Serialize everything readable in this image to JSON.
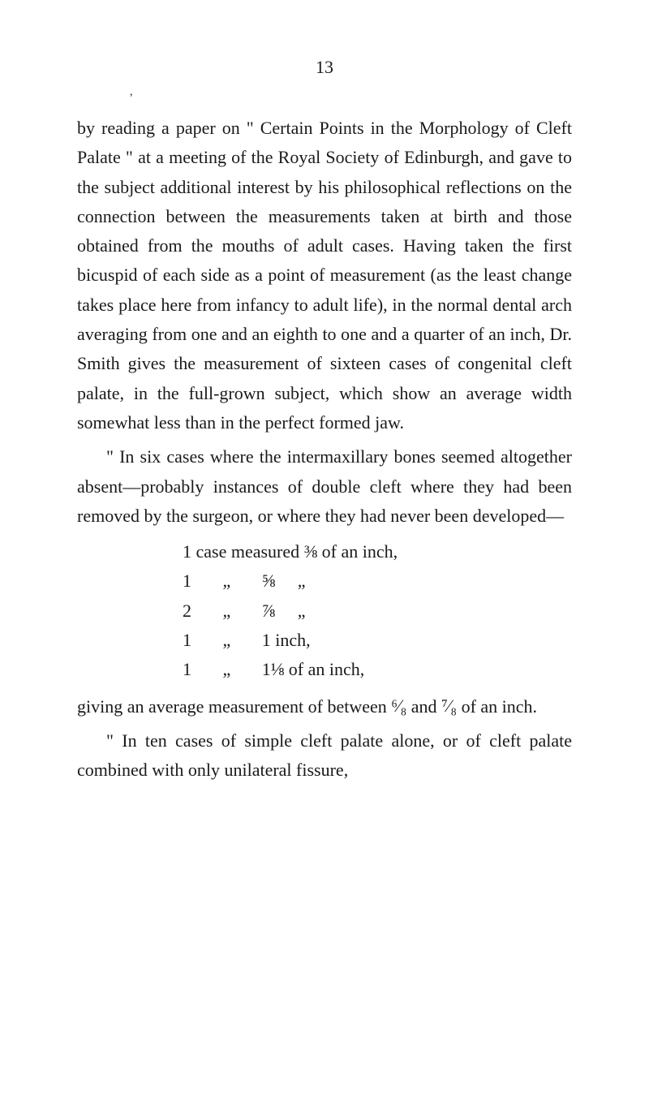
{
  "page_number": "13",
  "comma": ",",
  "paragraphs": {
    "p1": "by reading a paper on \" Certain Points in the Morphology of Cleft Palate \" at a meeting of the Royal Society of Edinburgh, and gave to the subject additional interest by his philosophical reflections on the connection between the measurements taken at birth and those obtained from the mouths of adult cases. Having taken the first bicuspid of each side as a point of measurement (as the least change takes place here from infancy to adult life), in the normal dental arch averaging from one and an eighth to one and a quarter of an inch, Dr. Smith gives the measurement of sixteen cases of congenital cleft palate, in the full-grown subject, which show an average width somewhat less than in the perfect formed jaw.",
    "p2": "\" In six cases where the intermaxillary bones seemed altogether absent—probably instances of double cleft where they had been removed by the surgeon, or where they had never been developed—",
    "p3_a": "giving an average measurement of between ",
    "p3_frac1": "⁶⁄₈",
    "p3_b": " and ",
    "p3_frac2": "⁷⁄₈",
    "p3_c": " of an inch.",
    "p4": "\" In ten cases of simple cleft palate alone, or of cleft palate combined with only unilateral fissure,"
  },
  "measurements": {
    "m1": "1 case measured ⅜ of an inch,",
    "m2": "1       „       ⅝     „",
    "m3": "2       „       ⅞     „",
    "m4": "1       „       1 inch,",
    "m5": "1       „       1⅛ of an inch,"
  },
  "colors": {
    "background": "#ffffff",
    "text": "#1a1a1a"
  },
  "typography": {
    "body_fontsize": 22,
    "line_height": 1.65,
    "font_family": "Georgia, Times New Roman, serif"
  }
}
